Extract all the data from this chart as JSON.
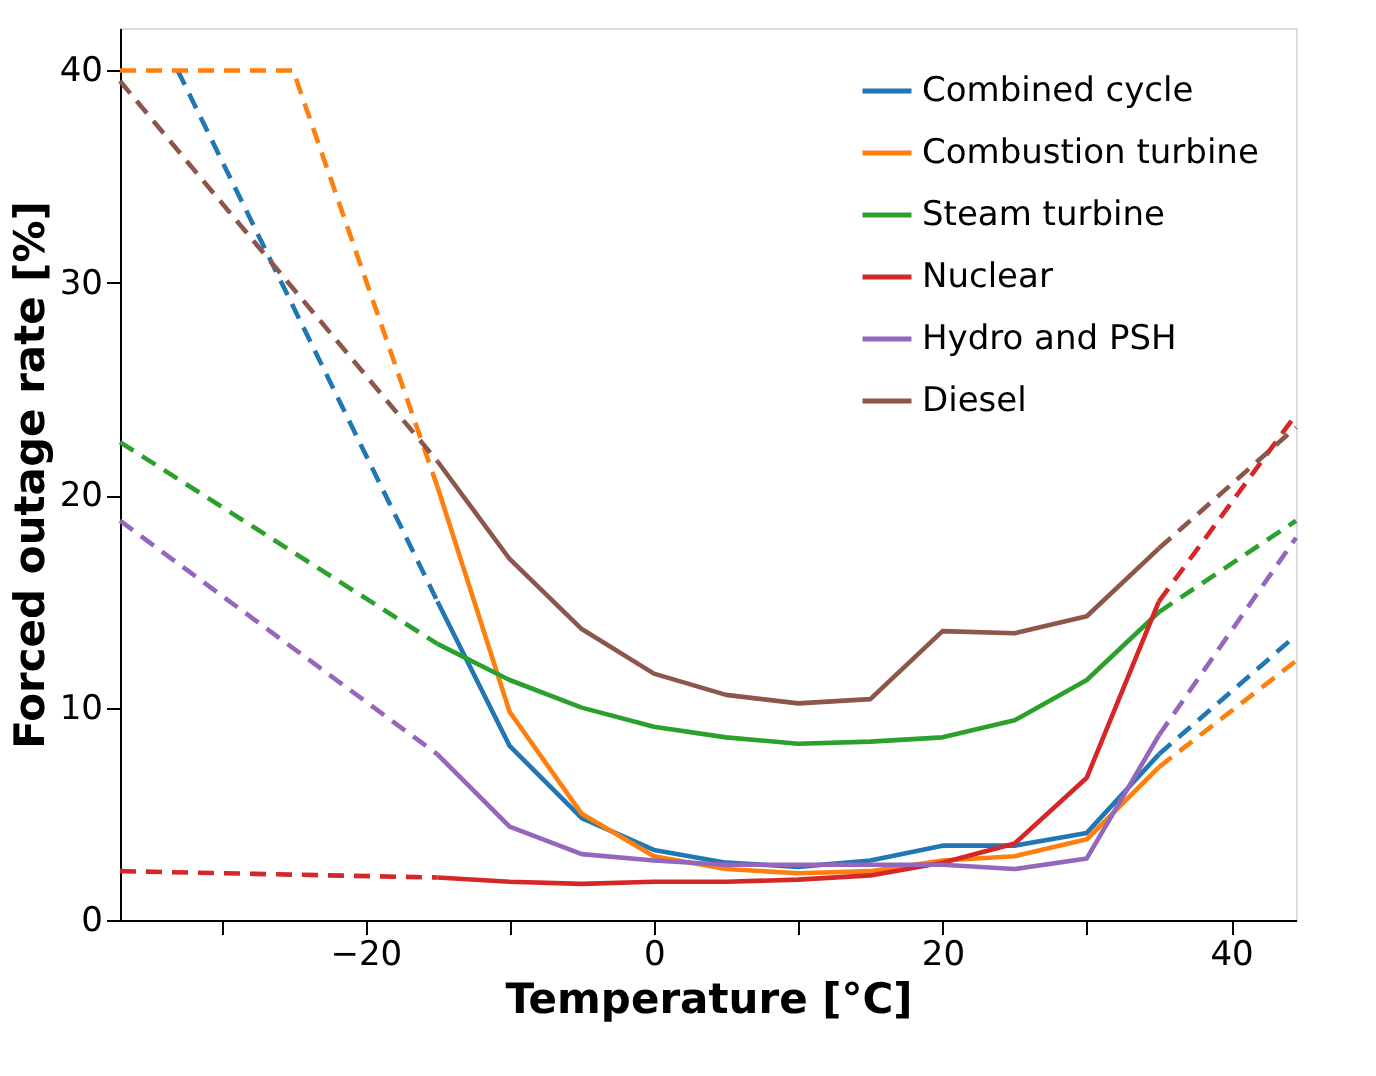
{
  "chart_data": {
    "type": "line",
    "xlabel": "Temperature [°C]",
    "ylabel": "Forced outage rate [%]",
    "xlim": [
      -37,
      44.5
    ],
    "ylim": [
      0,
      42
    ],
    "xticks": [
      {
        "value": -30,
        "label": null
      },
      -20,
      {
        "value": -10,
        "label": null
      },
      0,
      {
        "value": 10,
        "label": null
      },
      20,
      {
        "value": 30,
        "label": null
      },
      40
    ],
    "yticks": [
      0,
      10,
      20,
      30,
      40
    ],
    "grid": false,
    "legend": "top right",
    "marker": "none",
    "series": [
      {
        "name": "Combined cycle",
        "color": "#1f77b4",
        "line_style": "solid",
        "x": [
          -15,
          -10,
          -5,
          0,
          5,
          10,
          15,
          20,
          25,
          30,
          35
        ],
        "values": [
          15,
          8.2,
          4.8,
          3.3,
          2.7,
          2.5,
          2.8,
          3.5,
          3.5,
          4.1,
          7.8
        ]
      },
      {
        "name": "Combustion turbine",
        "color": "#ff7f0e",
        "line_style": "solid",
        "x": [
          -15,
          -10,
          -5,
          0,
          5,
          10,
          15,
          20,
          25,
          30,
          35
        ],
        "values": [
          20.4,
          9.8,
          5.0,
          3.0,
          2.4,
          2.2,
          2.3,
          2.8,
          3.0,
          3.8,
          7.2
        ]
      },
      {
        "name": "Steam turbine",
        "color": "#2ca02c",
        "line_style": "solid",
        "x": [
          -15,
          -10,
          -5,
          0,
          5,
          10,
          15,
          20,
          25,
          30,
          35
        ],
        "values": [
          13,
          11.3,
          10.0,
          9.1,
          8.6,
          8.3,
          8.4,
          8.6,
          9.4,
          11.3,
          14.5
        ]
      },
      {
        "name": "Nuclear",
        "color": "#d62728",
        "line_style": "solid",
        "x": [
          -15,
          -10,
          -5,
          0,
          5,
          10,
          15,
          20,
          25,
          30,
          35
        ],
        "values": [
          2.0,
          1.8,
          1.7,
          1.8,
          1.8,
          1.9,
          2.1,
          2.7,
          3.6,
          6.7,
          15
        ]
      },
      {
        "name": "Hydro and PSH",
        "color": "#9467bd",
        "line_style": "solid",
        "x": [
          -15,
          -10,
          -5,
          0,
          5,
          10,
          15,
          20,
          25,
          30,
          35
        ],
        "values": [
          7.8,
          4.4,
          3.1,
          2.8,
          2.6,
          2.6,
          2.6,
          2.6,
          2.4,
          2.9,
          8.7
        ]
      },
      {
        "name": "Diesel",
        "color": "#8c564b",
        "line_style": "solid",
        "x": [
          -15,
          -10,
          -5,
          0,
          5,
          10,
          15,
          20,
          25,
          30,
          35
        ],
        "values": [
          21.6,
          17,
          13.7,
          11.6,
          10.6,
          10.2,
          10.4,
          13.6,
          13.5,
          14.3,
          17.5
        ]
      },
      {
        "color": "#1f77b4",
        "line_style": "dashed",
        "x": [
          -33,
          -15,
          0,
          35,
          44.5
        ],
        "values": [
          40,
          15,
          null,
          7.8,
          13.4
        ]
      },
      {
        "color": "#ff7f0e",
        "line_style": "dashed",
        "x": [
          -37,
          -25,
          -15,
          0,
          35,
          44.5
        ],
        "values": [
          40,
          40,
          20.4,
          null,
          7.2,
          12.2
        ]
      },
      {
        "color": "#2ca02c",
        "line_style": "dashed",
        "x": [
          -37,
          -15,
          0,
          35,
          44.5
        ],
        "values": [
          22.5,
          13,
          null,
          14.5,
          18.8
        ]
      },
      {
        "color": "#d62728",
        "line_style": "dashed",
        "x": [
          -37,
          -15,
          0,
          35,
          44.5
        ],
        "values": [
          2.3,
          2.0,
          null,
          15,
          23.8
        ]
      },
      {
        "color": "#9467bd",
        "line_style": "dashed",
        "x": [
          -37,
          -15,
          0,
          35,
          44.5
        ],
        "values": [
          18.8,
          7.8,
          null,
          8.7,
          18
        ]
      },
      {
        "color": "#8c564b",
        "line_style": "dashed",
        "x": [
          -37,
          -15,
          0,
          35,
          44.5
        ],
        "values": [
          39.5,
          21.6,
          null,
          17.5,
          23.2
        ]
      }
    ]
  }
}
